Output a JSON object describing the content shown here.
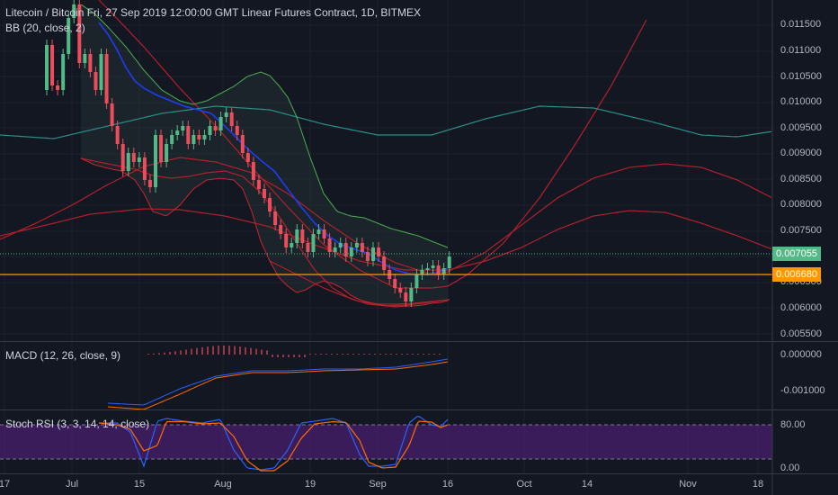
{
  "header": {
    "title": "Litecoin / Bitcoin Fri, 27 Sep 2019 12:00:00 GMT Linear Futures Contract, 1D, BITMEX",
    "indicator_bb": "BB (20, close, 2)"
  },
  "panes": {
    "macd_label": "MACD (12, 26, close, 9)",
    "stoch_label": "Stoch RSI (3, 3, 14, 14, close)"
  },
  "price_axis": {
    "ticks": [
      "0.011500",
      "0.011000",
      "0.010500",
      "0.010000",
      "0.009500",
      "0.009000",
      "0.008500",
      "0.008000",
      "0.007500",
      "0.006500",
      "0.006000",
      "0.005500"
    ],
    "last_price": "0.007055",
    "horizontal_line_price": "0.006680"
  },
  "macd_axis": {
    "ticks": [
      "0.000000",
      "-0.001000"
    ]
  },
  "stoch_axis": {
    "ticks": [
      "80.00",
      "0.00"
    ]
  },
  "time_axis": {
    "ticks": [
      "17",
      "Jul",
      "15",
      "Aug",
      "19",
      "Sep",
      "16",
      "Oct",
      "14",
      "Nov",
      "18"
    ]
  },
  "colors": {
    "background": "#131722",
    "up": "#53b987",
    "down": "#eb4d5c",
    "last_price_badge": "#53b987",
    "line_badge": "#ff9800",
    "bb_band": "#4caf50",
    "bb_basis": "#1e3cf5",
    "arc_red": "#b2202b",
    "cycle_teal": "#2a8f88",
    "stoch_fill": "#4a1f6e"
  },
  "chart_data": {
    "type": "candlestick",
    "title": "Litecoin / Bitcoin Fri, 27 Sep 2019 12:00:00 GMT Linear Futures Contract, 1D, BITMEX",
    "y_range": [
      0.0055,
      0.012
    ],
    "last_close": 0.007055,
    "horizontal_line": 0.00668
  }
}
